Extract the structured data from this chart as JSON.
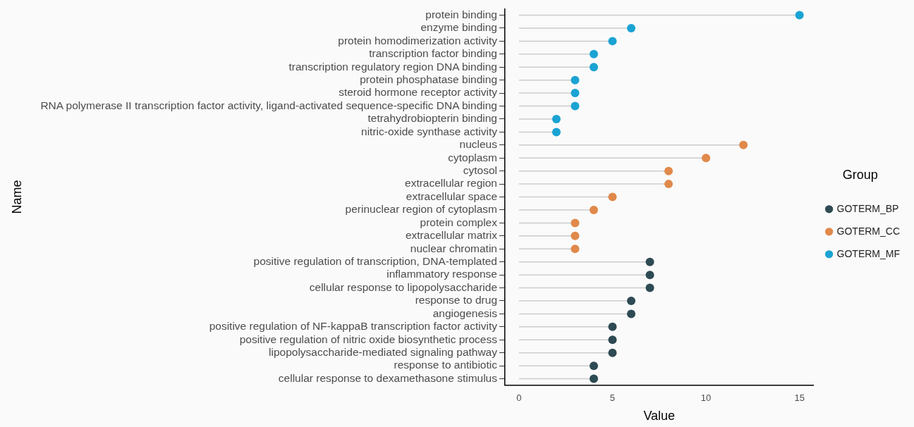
{
  "chart_data": {
    "type": "lollipop",
    "orientation": "horizontal",
    "xlabel": "Value",
    "ylabel": "Name",
    "legend_title": "Group",
    "legend": "right",
    "grid": false,
    "marker": "circle",
    "categories": [
      "protein binding",
      "enzyme binding",
      "protein homodimerization activity",
      "transcription factor binding",
      "transcription regulatory region DNA binding",
      "protein phosphatase binding",
      "steroid hormone receptor activity",
      "RNA polymerase II transcription factor activity, ligand-activated sequence-specific DNA binding",
      "tetrahydrobiopterin binding",
      "nitric-oxide synthase activity",
      "nucleus",
      "cytoplasm",
      "cytosol",
      "extracellular region",
      "extracellular space",
      "perinuclear region of cytoplasm",
      "protein complex",
      "extracellular matrix",
      "nuclear chromatin",
      "positive regulation of transcription, DNA-templated",
      "inflammatory response",
      "cellular response to lipopolysaccharide",
      "response to drug",
      "angiogenesis",
      "positive regulation of NF-kappaB transcription factor activity",
      "positive regulation of nitric oxide biosynthetic process",
      "lipopolysaccharide-mediated signaling pathway",
      "response to antibiotic",
      "cellular response to dexamethasone stimulus"
    ],
    "xlim": [
      -0.75,
      15.75
    ],
    "xticks": [
      0,
      5,
      10,
      15
    ],
    "series": [
      {
        "name": "GOTERM_BP",
        "color": "#2e4a53",
        "values": [
          null,
          null,
          null,
          null,
          null,
          null,
          null,
          null,
          null,
          null,
          null,
          null,
          null,
          null,
          null,
          null,
          null,
          null,
          null,
          7,
          7,
          7,
          6,
          6,
          5,
          5,
          5,
          4,
          4
        ]
      },
      {
        "name": "GOTERM_CC",
        "color": "#e0894a",
        "values": [
          null,
          null,
          null,
          null,
          null,
          null,
          null,
          null,
          null,
          null,
          12,
          10,
          8,
          8,
          5,
          4,
          3,
          3,
          3,
          null,
          null,
          null,
          null,
          null,
          null,
          null,
          null,
          null,
          null
        ]
      },
      {
        "name": "GOTERM_MF",
        "color": "#1aa3d3",
        "values": [
          15,
          6,
          5,
          4,
          4,
          3,
          3,
          3,
          2,
          2,
          null,
          null,
          null,
          null,
          null,
          null,
          null,
          null,
          null,
          null,
          null,
          null,
          null,
          null,
          null,
          null,
          null,
          null,
          null
        ]
      }
    ]
  }
}
